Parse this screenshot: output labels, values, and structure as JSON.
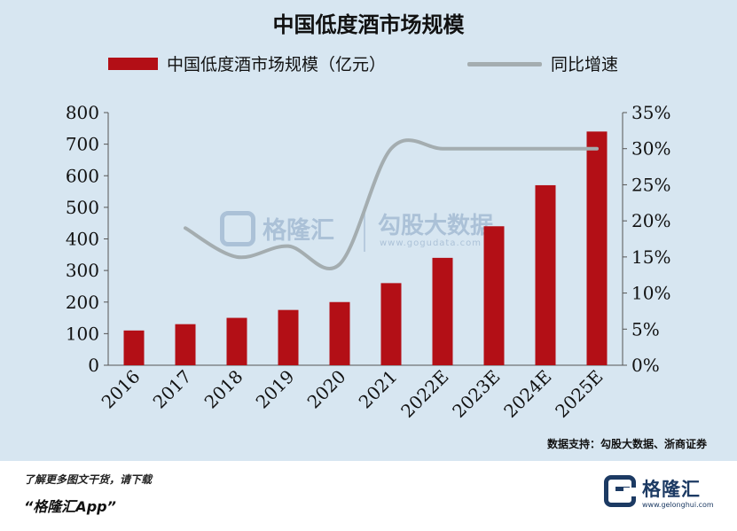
{
  "title": "中国低度酒市场规模",
  "legend": {
    "bar_label": "中国低度酒市场规模（亿元）",
    "line_label": "同比增速"
  },
  "chart_data": {
    "type": "bar",
    "title": "中国低度酒市场规模",
    "categories": [
      "2016",
      "2017",
      "2018",
      "2019",
      "2020",
      "2021",
      "2022E",
      "2023E",
      "2024E",
      "2025E"
    ],
    "series": [
      {
        "name": "中国低度酒市场规模（亿元）",
        "type": "bar",
        "axis": "left",
        "color": "#b30f16",
        "values": [
          110,
          130,
          150,
          175,
          200,
          260,
          340,
          440,
          570,
          740
        ]
      },
      {
        "name": "同比增速",
        "type": "line",
        "axis": "right",
        "color": "#a4adb0",
        "values": [
          null,
          19.0,
          15.0,
          16.5,
          14.0,
          30.0,
          30.0,
          30.0,
          30.0,
          30.0
        ]
      }
    ],
    "y_left": {
      "range": [
        0,
        800
      ],
      "ticks": [
        "0",
        "100",
        "200",
        "300",
        "400",
        "500",
        "600",
        "700",
        "800"
      ]
    },
    "y_right": {
      "range": [
        0,
        35
      ],
      "ticks": [
        "0%",
        "5%",
        "10%",
        "15%",
        "20%",
        "25%",
        "30%",
        "35%"
      ]
    },
    "grid": false,
    "legend_position": "top"
  },
  "source": "数据支持：勾股大数据、浙商证券",
  "watermark": {
    "brand": "格隆汇",
    "brand2": "勾股大数据",
    "url": "www.gogudata.com"
  },
  "footer": {
    "promo_line1": "了解更多图文干货，请下载",
    "promo_line2": "“格隆汇App”",
    "logo_text": "格隆汇",
    "logo_url": "www.gelonghui.com"
  }
}
